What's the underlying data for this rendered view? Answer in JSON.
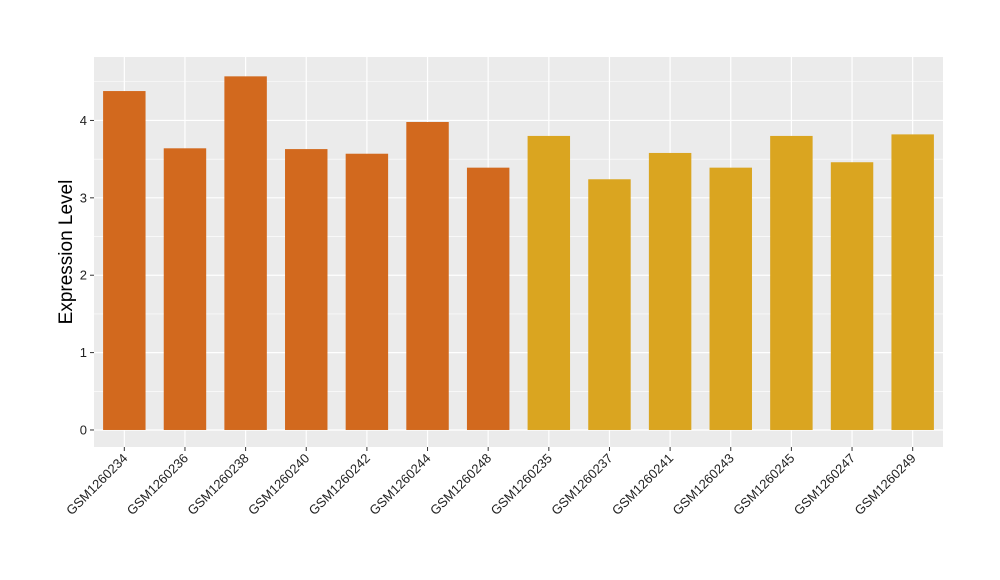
{
  "chart_data": {
    "type": "bar",
    "ylabel": "Expression Level",
    "xlabel": "",
    "ylim": [
      -0.22,
      4.82
    ],
    "yticks": [
      0,
      1,
      2,
      3,
      4
    ],
    "grid": true,
    "categories": [
      "GSM1260234",
      "GSM1260236",
      "GSM1260238",
      "GSM1260240",
      "GSM1260242",
      "GSM1260244",
      "GSM1260248",
      "GSM1260235",
      "GSM1260237",
      "GSM1260241",
      "GSM1260243",
      "GSM1260245",
      "GSM1260247",
      "GSM1260249"
    ],
    "values": [
      4.38,
      3.64,
      4.57,
      3.63,
      3.57,
      3.98,
      3.39,
      3.8,
      3.24,
      3.58,
      3.39,
      3.8,
      3.46,
      3.82
    ],
    "bar_colors": [
      "#d2691e",
      "#d2691e",
      "#d2691e",
      "#d2691e",
      "#d2691e",
      "#d2691e",
      "#d2691e",
      "#daa520",
      "#daa520",
      "#daa520",
      "#daa520",
      "#daa520",
      "#daa520",
      "#daa520"
    ],
    "panel_background": "#ebebeb",
    "grid_color": "#ffffff"
  }
}
